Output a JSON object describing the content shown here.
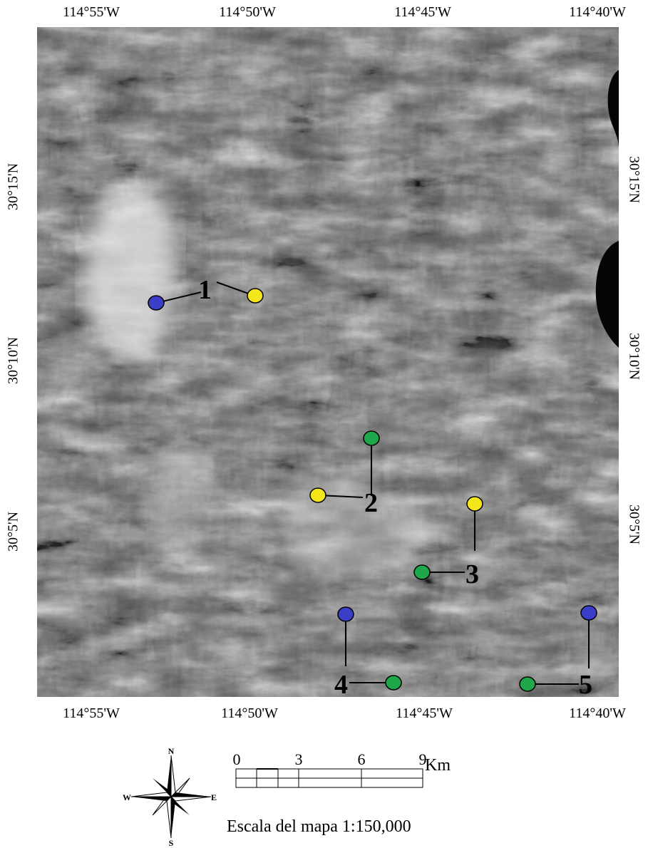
{
  "axes": {
    "longitude_ticks": [
      "114°55'W",
      "114°50'W",
      "114°45'W",
      "114°40'W"
    ],
    "longitude_ticks_bottom_last": "114°40'W",
    "latitude_ticks": [
      "30°15'N",
      "30°10'N",
      "30°5'N"
    ]
  },
  "sites": [
    {
      "label": "1",
      "points": [
        {
          "color": "blue"
        },
        {
          "color": "yellow"
        }
      ]
    },
    {
      "label": "2",
      "points": [
        {
          "color": "green"
        },
        {
          "color": "yellow"
        }
      ]
    },
    {
      "label": "3",
      "points": [
        {
          "color": "yellow"
        },
        {
          "color": "green"
        }
      ]
    },
    {
      "label": "4",
      "points": [
        {
          "color": "blue"
        },
        {
          "color": "green"
        }
      ]
    },
    {
      "label": "5",
      "points": [
        {
          "color": "blue"
        },
        {
          "color": "green"
        }
      ]
    }
  ],
  "marker_colors": {
    "blue": "#3b3fc7",
    "yellow": "#f5e61c",
    "green": "#1fa84a"
  },
  "compass": {
    "north": "N",
    "south": "S",
    "east": "E",
    "west": "W"
  },
  "scale": {
    "ticks": [
      "0",
      "3",
      "6",
      "9"
    ],
    "unit": "Km",
    "label": "Escala del mapa 1:150,000"
  }
}
